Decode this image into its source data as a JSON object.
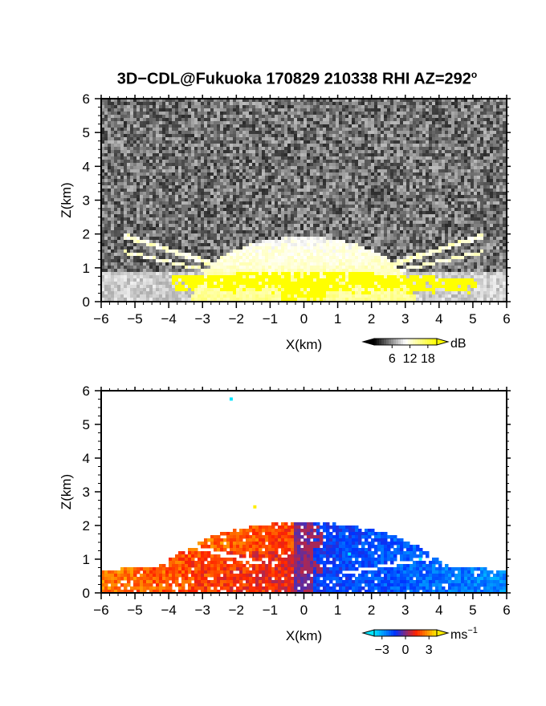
{
  "title_parts": {
    "main": "3D−CDL@Fukuoka 170829 210338 RHI AZ=292",
    "sup": "o"
  },
  "chart_data": [
    {
      "type": "heatmap",
      "panel": "top",
      "variable": "backscatter intensity",
      "xlabel": "X(km)",
      "ylabel": "Z(km)",
      "xlim": [
        -6,
        6
      ],
      "ylim": [
        0,
        6
      ],
      "xticks": [
        "−6",
        "−5",
        "−4",
        "−3",
        "−2",
        "−1",
        "0",
        "1",
        "2",
        "3",
        "4",
        "5",
        "6"
      ],
      "yticks": [
        "0",
        "1",
        "2",
        "3",
        "4",
        "5",
        "6"
      ],
      "colorbar": {
        "unit": "dB",
        "ticks": [
          "6",
          "12",
          "18"
        ],
        "range": [
          0,
          21
        ],
        "colors": [
          "#000000",
          "#ffffff",
          "#ffff00"
        ]
      },
      "features": {
        "noise_floor_level": 0.25,
        "bright_dome": {
          "x_range": [
            -3.3,
            3.3
          ],
          "z_top": 1.9
        },
        "high_values_near_ground": {
          "x_range": [
            -3.9,
            5.1
          ],
          "z_top": 0.85,
          "color": "#ffff00"
        }
      }
    },
    {
      "type": "heatmap",
      "panel": "bottom",
      "variable": "Doppler velocity",
      "xlabel": "X(km)",
      "ylabel": "Z(km)",
      "xlim": [
        -6,
        6
      ],
      "ylim": [
        0,
        6
      ],
      "xticks": [
        "−6",
        "−5",
        "−4",
        "−3",
        "−2",
        "−1",
        "0",
        "1",
        "2",
        "3",
        "4",
        "5",
        "6"
      ],
      "yticks": [
        "0",
        "1",
        "2",
        "3",
        "4",
        "5",
        "6"
      ],
      "colorbar": {
        "unit": "ms",
        "unit_sup": "−1",
        "ticks": [
          "−3",
          "0",
          "3"
        ],
        "range": [
          -4,
          4
        ],
        "colors": [
          "#00e5ff",
          "#0033ff",
          "#ff2200",
          "#ffee00"
        ]
      },
      "features": {
        "negative_x_velocity_ms": 2.5,
        "positive_x_velocity_ms": -2.8,
        "echo_top_km": 2.1
      }
    }
  ]
}
